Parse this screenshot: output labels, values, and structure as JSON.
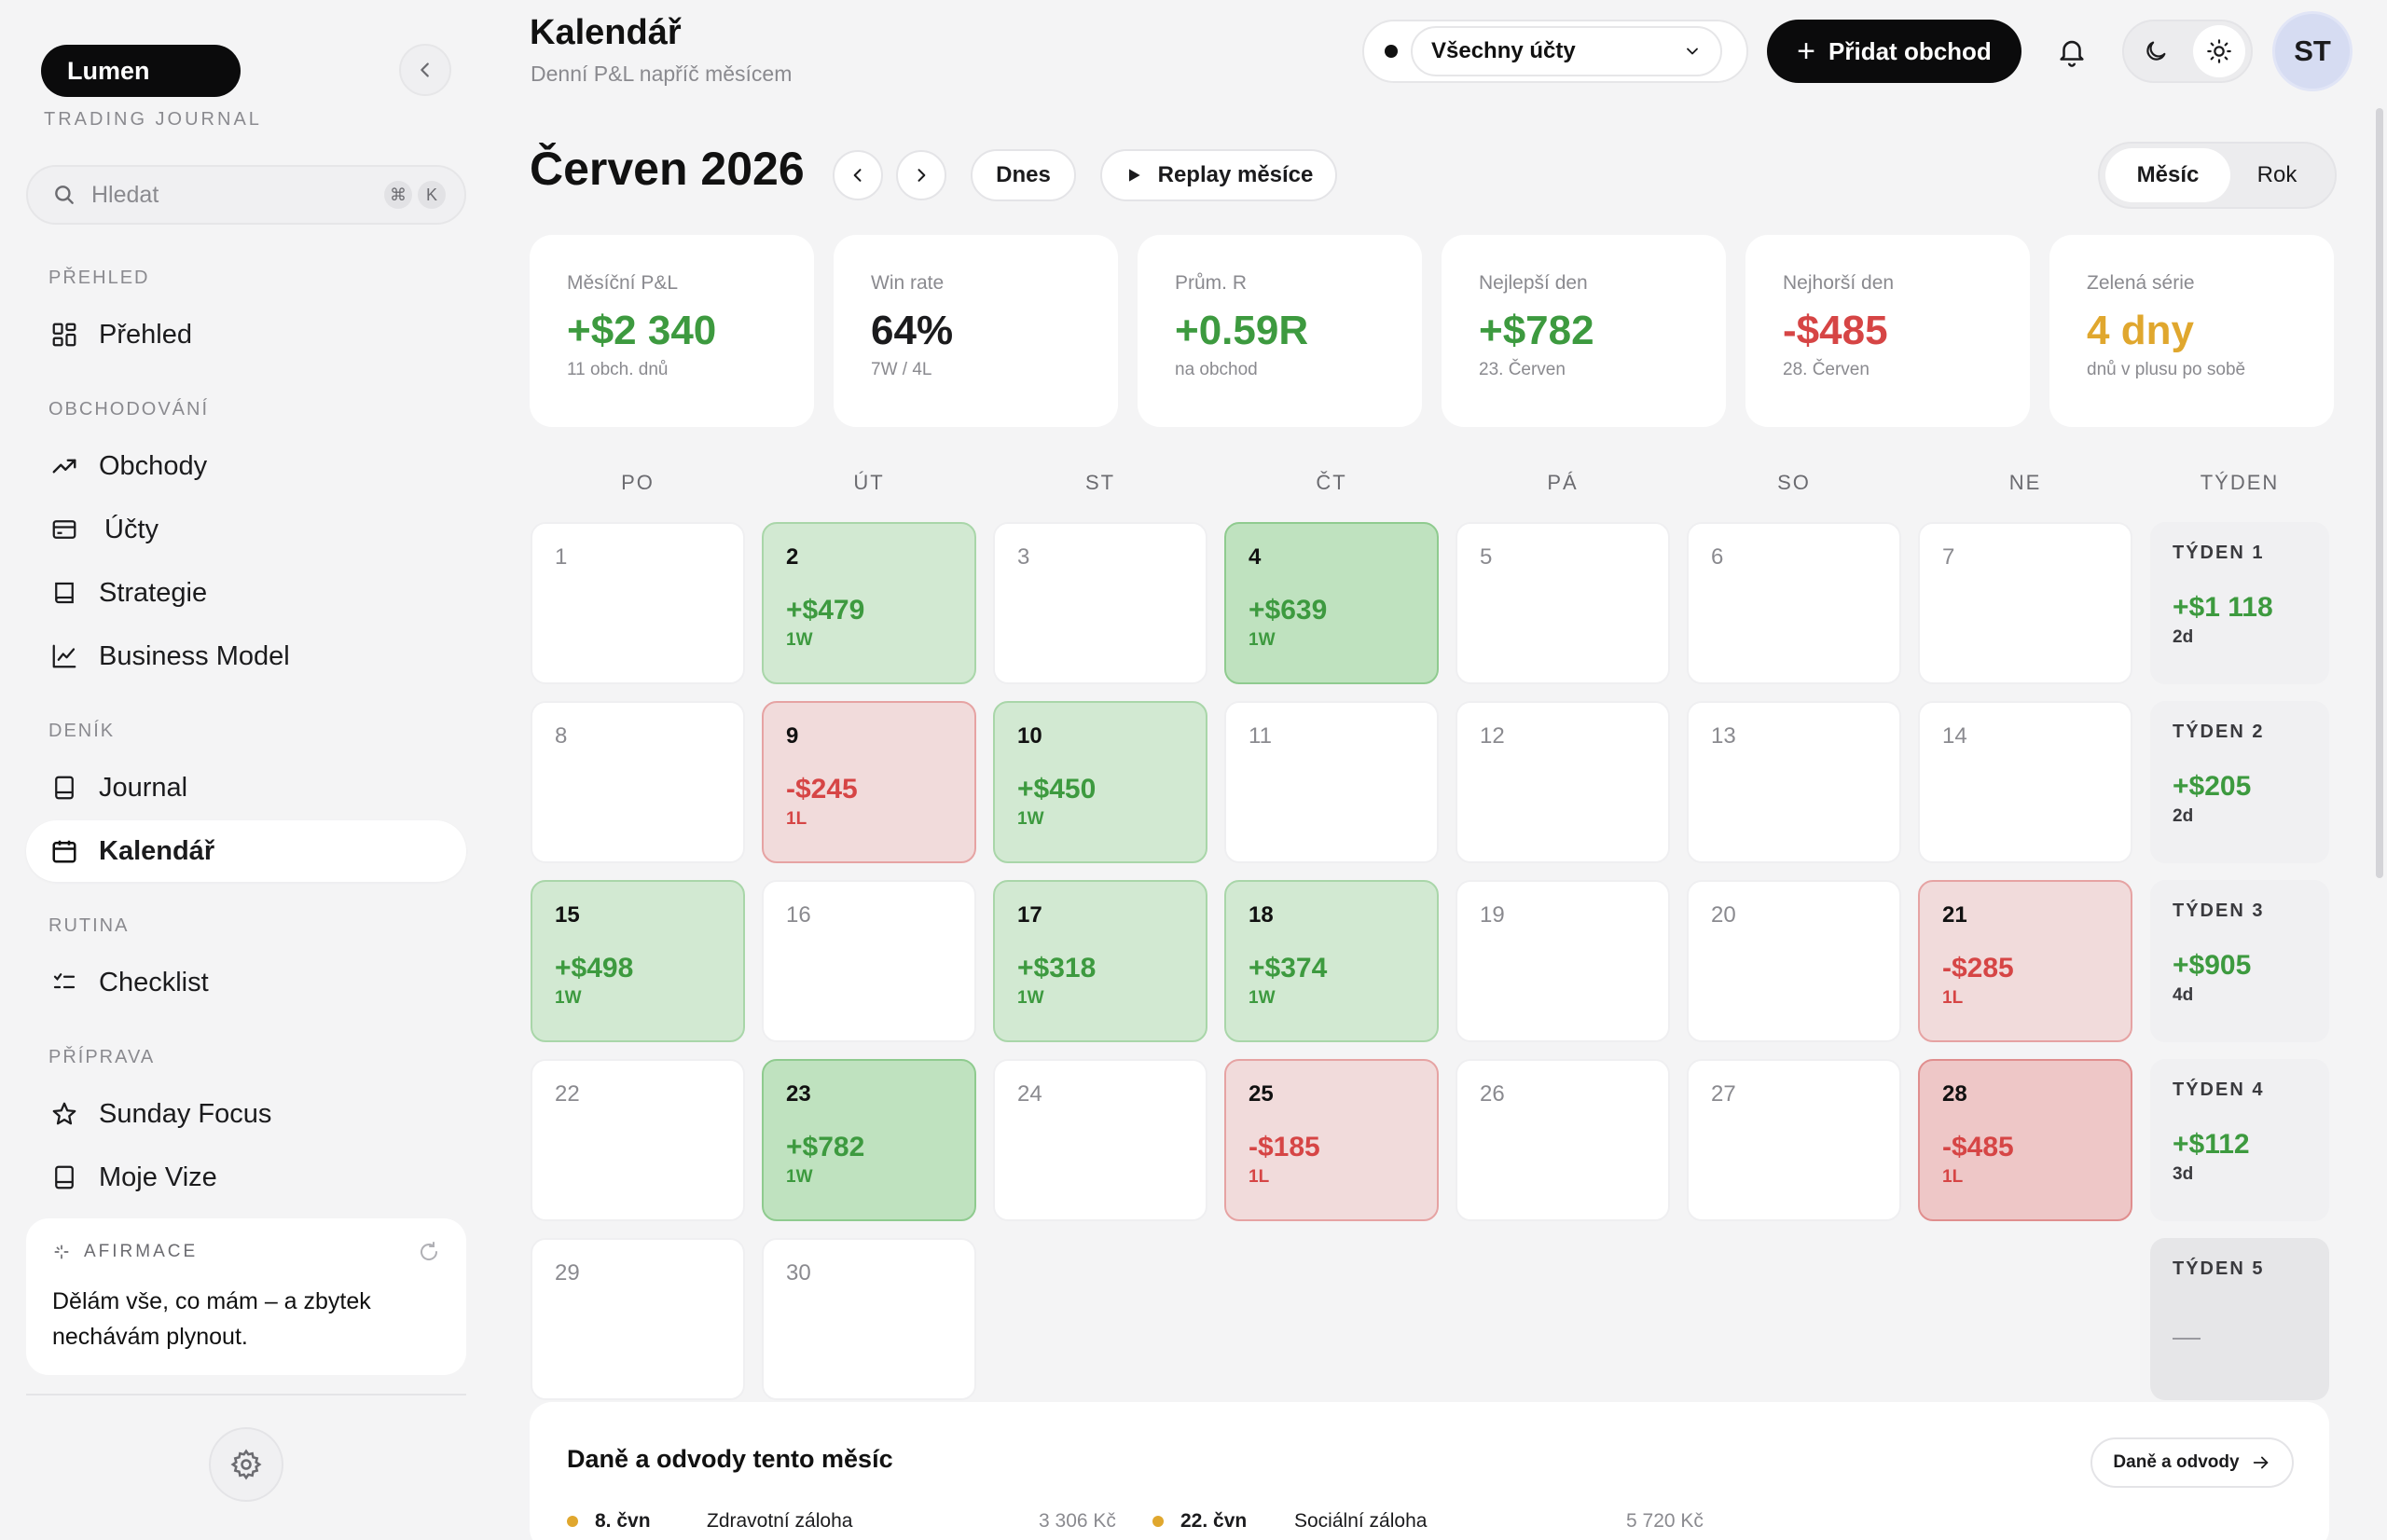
{
  "sidebar": {
    "logo": "Lumen",
    "logo_sub": "TRADING JOURNAL",
    "search_placeholder": "Hledat",
    "search_kbd": [
      "⌘",
      "K"
    ],
    "sections": {
      "overview": "PŘEHLED",
      "trading": "OBCHODOVÁNÍ",
      "journal": "DENÍK",
      "routine": "RUTINA",
      "prep": "PŘÍPRAVA"
    },
    "items": {
      "overview": "Přehled",
      "trades": "Obchody",
      "accounts": "Účty",
      "strategy": "Strategie",
      "business": "Business Model",
      "journal": "Journal",
      "calendar": "Kalendář",
      "checklist": "Checklist",
      "sunday": "Sunday Focus",
      "vision": "Moje Vize"
    },
    "affirmation": {
      "label": "AFIRMACE",
      "text": "Dělám vše, co mám – a zbytek nechávám plynout."
    }
  },
  "header": {
    "title": "Kalendář",
    "subtitle": "Denní P&L napříč měsícem",
    "account_select": "Všechny účty",
    "add_button": "Přidat obchod",
    "avatar": "ST"
  },
  "month_bar": {
    "title": "Červen 2026",
    "today": "Dnes",
    "replay": "Replay měsíce",
    "view_month": "Měsíc",
    "view_year": "Rok"
  },
  "stats": [
    {
      "label": "Měsíční P&L",
      "value": "+$2 340",
      "sub": "11 obch. dnů",
      "color": "#3d9a3f"
    },
    {
      "label": "Win rate",
      "value": "64%",
      "sub": "7W / 4L",
      "color": "#1b1b1d"
    },
    {
      "label": "Prům. R",
      "value": "+0.59R",
      "sub": "na obchod",
      "color": "#3d9a3f"
    },
    {
      "label": "Nejlepší den",
      "value": "+$782",
      "sub": "23. Červen",
      "color": "#3d9a3f"
    },
    {
      "label": "Nejhorší den",
      "value": "-$485",
      "sub": "28. Červen",
      "color": "#d64545"
    },
    {
      "label": "Zelená série",
      "value": "4 dny",
      "sub": "dnů v plusu po sobě",
      "color": "#e0a72e"
    }
  ],
  "calendar": {
    "weekdays": [
      "PO",
      "ÚT",
      "ST",
      "ČT",
      "PÁ",
      "SO",
      "NE",
      "TÝDEN"
    ],
    "weeks": [
      {
        "label": "TÝDEN 1",
        "pnl": "+$1 118",
        "days_traded": "2d",
        "days": [
          {
            "n": "1"
          },
          {
            "n": "2",
            "pnl": "+$479",
            "wl": "1W",
            "tone": "w1"
          },
          {
            "n": "3"
          },
          {
            "n": "4",
            "pnl": "+$639",
            "wl": "1W",
            "tone": "w2"
          },
          {
            "n": "5"
          },
          {
            "n": "6"
          },
          {
            "n": "7"
          }
        ]
      },
      {
        "label": "TÝDEN 2",
        "pnl": "+$205",
        "days_traded": "2d",
        "days": [
          {
            "n": "8"
          },
          {
            "n": "9",
            "pnl": "-$245",
            "wl": "1L",
            "tone": "l1"
          },
          {
            "n": "10",
            "pnl": "+$450",
            "wl": "1W",
            "tone": "w1"
          },
          {
            "n": "11"
          },
          {
            "n": "12"
          },
          {
            "n": "13"
          },
          {
            "n": "14"
          }
        ]
      },
      {
        "label": "TÝDEN 3",
        "pnl": "+$905",
        "days_traded": "4d",
        "days": [
          {
            "n": "15",
            "pnl": "+$498",
            "wl": "1W",
            "tone": "w1"
          },
          {
            "n": "16"
          },
          {
            "n": "17",
            "pnl": "+$318",
            "wl": "1W",
            "tone": "w1"
          },
          {
            "n": "18",
            "pnl": "+$374",
            "wl": "1W",
            "tone": "w1"
          },
          {
            "n": "19"
          },
          {
            "n": "20"
          },
          {
            "n": "21",
            "pnl": "-$285",
            "wl": "1L",
            "tone": "l1"
          }
        ]
      },
      {
        "label": "TÝDEN 4",
        "pnl": "+$112",
        "days_traded": "3d",
        "days": [
          {
            "n": "22"
          },
          {
            "n": "23",
            "pnl": "+$782",
            "wl": "1W",
            "tone": "w2"
          },
          {
            "n": "24"
          },
          {
            "n": "25",
            "pnl": "-$185",
            "wl": "1L",
            "tone": "l1"
          },
          {
            "n": "26"
          },
          {
            "n": "27"
          },
          {
            "n": "28",
            "pnl": "-$485",
            "wl": "1L",
            "tone": "l2"
          }
        ]
      },
      {
        "label": "TÝDEN 5",
        "pnl": "",
        "days_traded": "",
        "days": [
          {
            "n": "29"
          },
          {
            "n": "30"
          }
        ]
      }
    ]
  },
  "tax": {
    "title": "Daně a odvody tento měsíc",
    "button": "Daně a odvody",
    "rows": [
      {
        "date": "8. čvn",
        "name": "Zdravotní záloha",
        "amount": "3 306 Kč"
      },
      {
        "date": "22. čvn",
        "name": "Sociální záloha",
        "amount": "5 720 Kč"
      }
    ]
  },
  "colors": {
    "profit": "#3d9a3f",
    "loss": "#d64545",
    "streak": "#e0a72e",
    "dark": "#0b0b0c"
  }
}
